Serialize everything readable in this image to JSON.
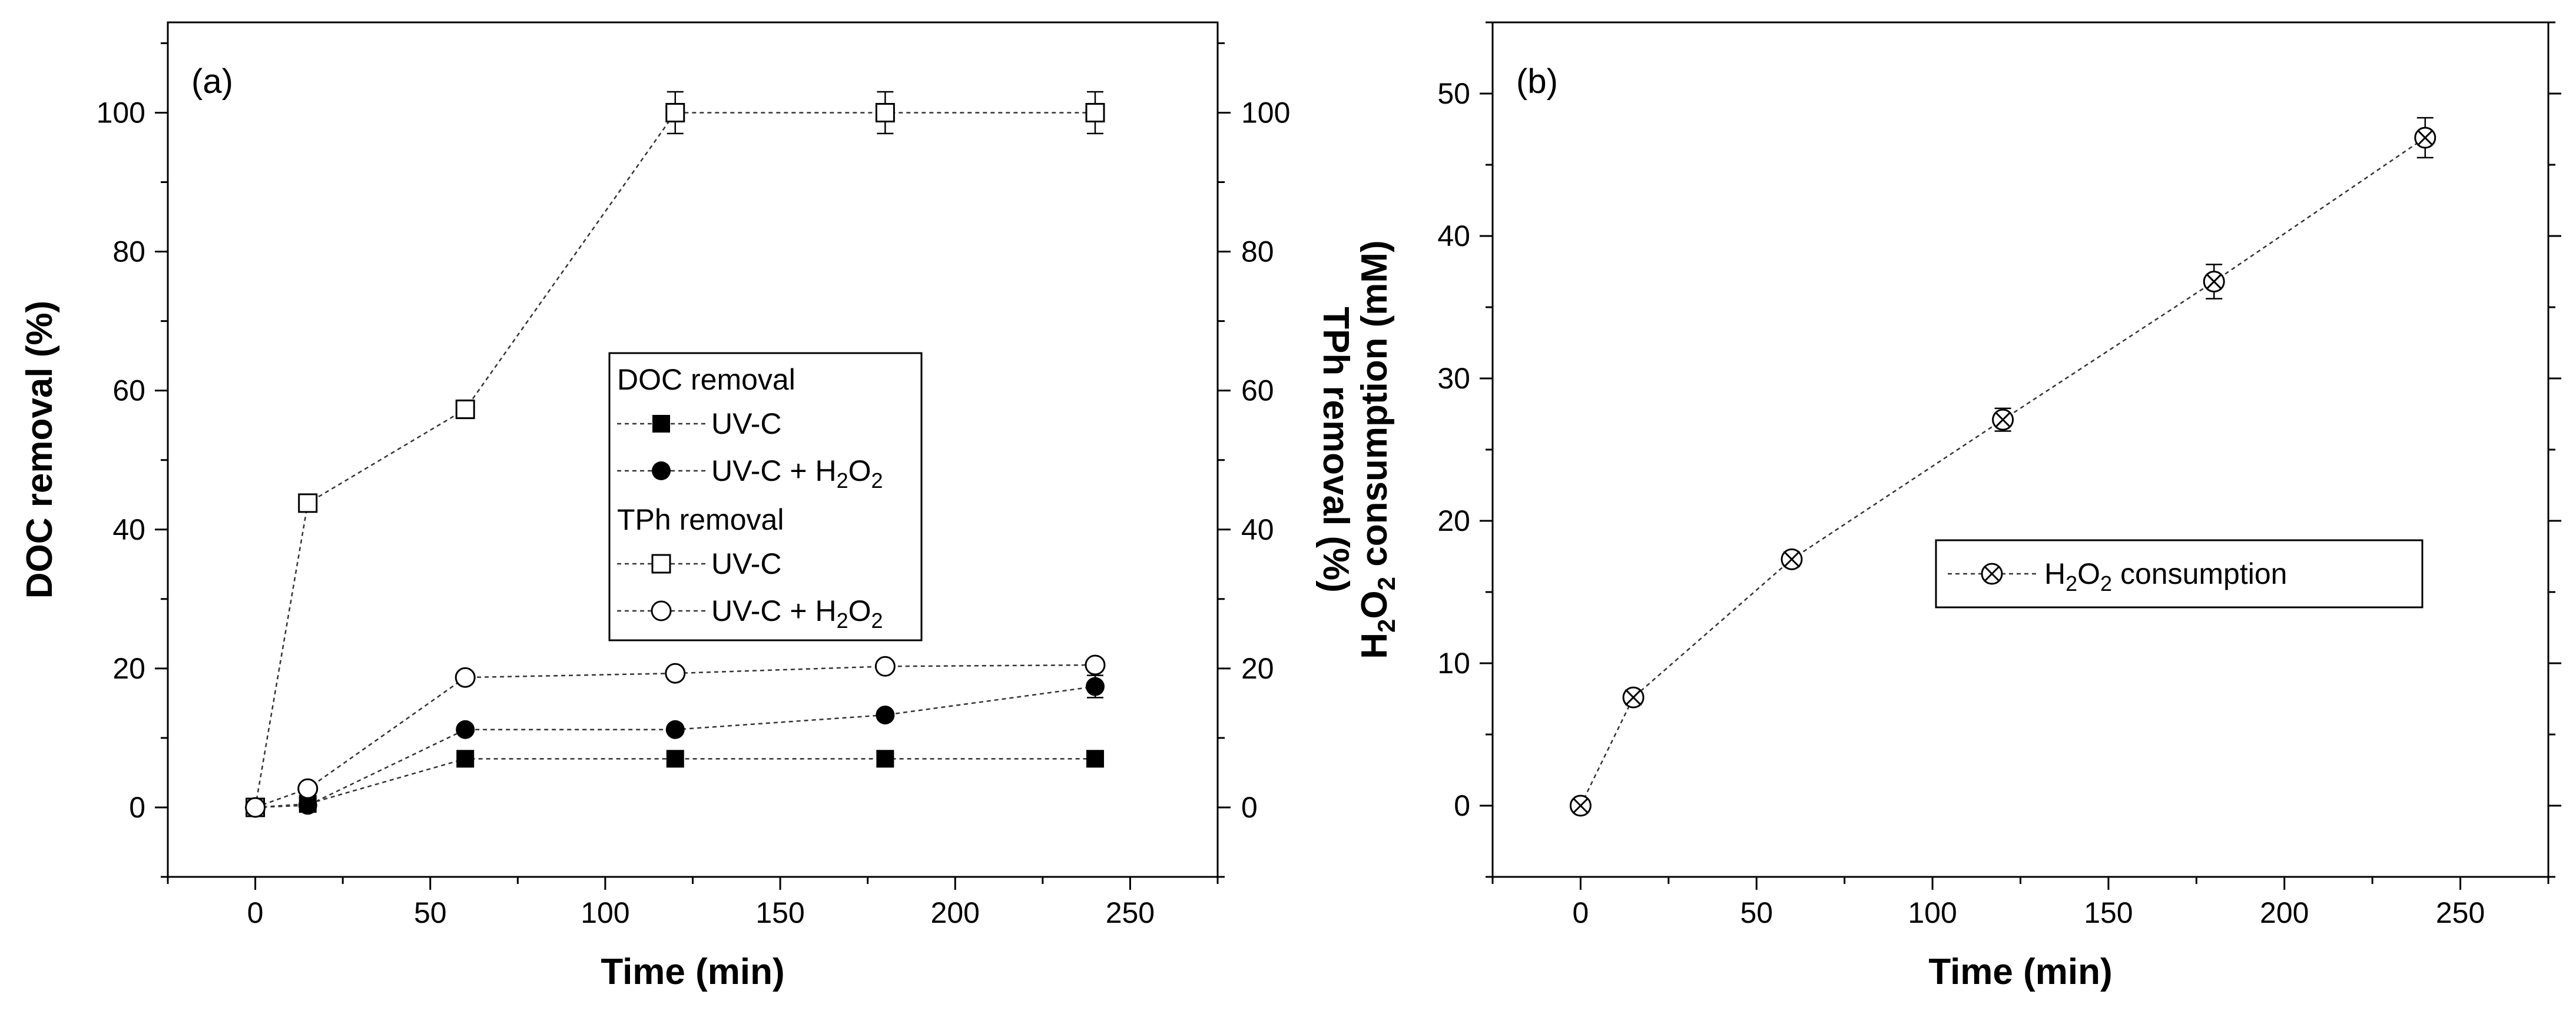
{
  "chart_data": [
    {
      "panel_label": "(a)",
      "type": "line",
      "xlabel": "Time (min)",
      "ylabel": "DOC removal (%)",
      "ylabel_right": "TPh removal (%)",
      "xlim": [
        -25,
        275
      ],
      "ylim": [
        -10,
        113
      ],
      "x_ticks": [
        "0",
        "50",
        "100",
        "150",
        "200",
        "250"
      ],
      "y_ticks": [
        "0",
        "20",
        "40",
        "60",
        "80",
        "100"
      ],
      "y_ticks_right": [
        "0",
        "20",
        "40",
        "60",
        "80",
        "100"
      ],
      "legend": {
        "position": "center",
        "group_titles": [
          "DOC removal",
          "TPh removal"
        ],
        "entries": [
          {
            "label": "UV-C",
            "series": 0
          },
          {
            "label": "UV-C + H",
            "sub": "2",
            "tail": "O",
            "sub2": "2",
            "series": 1
          },
          {
            "label": "UV-C",
            "series": 2
          },
          {
            "label": "UV-C + H",
            "sub": "2",
            "tail": "O",
            "sub2": "2",
            "series": 3
          }
        ]
      },
      "series": [
        {
          "name": "DOC removal UV-C",
          "marker": "filled-square",
          "x": [
            0,
            15,
            60,
            120,
            180,
            240
          ],
          "y": [
            0,
            0.5,
            7,
            7,
            7,
            7
          ],
          "err": [
            0,
            0,
            0,
            0,
            0,
            0
          ]
        },
        {
          "name": "DOC removal UV-C + H2O2",
          "marker": "filled-circle",
          "x": [
            0,
            15,
            60,
            120,
            180,
            240
          ],
          "y": [
            0,
            0.3,
            11.2,
            11.2,
            13.3,
            17.4
          ],
          "err": [
            0,
            0,
            0,
            0,
            0.6,
            1.6
          ]
        },
        {
          "name": "TPh removal UV-C",
          "marker": "open-square",
          "x": [
            0,
            15,
            60,
            120,
            180,
            240
          ],
          "y": [
            0,
            43.8,
            57.3,
            100,
            100,
            100
          ],
          "err": [
            0,
            0,
            1.3,
            3,
            3,
            3
          ]
        },
        {
          "name": "TPh removal UV-C + H2O2",
          "marker": "open-circle",
          "x": [
            0,
            15,
            60,
            120,
            180,
            240
          ],
          "y": [
            0,
            2.7,
            18.7,
            19.3,
            20.3,
            20.5
          ],
          "err": [
            0,
            0.4,
            0.4,
            0.4,
            0.4,
            0.8
          ]
        }
      ]
    },
    {
      "panel_label": "(b)",
      "type": "line",
      "xlabel": "Time (min)",
      "ylabel": "H",
      "ylabel_sub": "2",
      "ylabel_mid": "O",
      "ylabel_sub2": "2",
      "ylabel_tail": " consumption (mM)",
      "xlim": [
        -25,
        275
      ],
      "ylim": [
        -5,
        55
      ],
      "x_ticks": [
        "0",
        "50",
        "100",
        "150",
        "200",
        "250"
      ],
      "y_ticks": [
        "0",
        "10",
        "20",
        "30",
        "40",
        "50"
      ],
      "legend": {
        "position": "center-right",
        "entries": [
          {
            "label": "H",
            "sub": "2",
            "tail": "O",
            "sub2": "2",
            "tail2": " consumption",
            "series": 0
          }
        ]
      },
      "series": [
        {
          "name": "H2O2 consumption",
          "marker": "crossed-circle",
          "x": [
            0,
            15,
            60,
            120,
            180,
            240
          ],
          "y": [
            0,
            7.6,
            17.3,
            27.1,
            36.8,
            46.9
          ],
          "err": [
            0,
            0.5,
            0.5,
            0.8,
            1.2,
            1.4
          ]
        }
      ]
    }
  ]
}
